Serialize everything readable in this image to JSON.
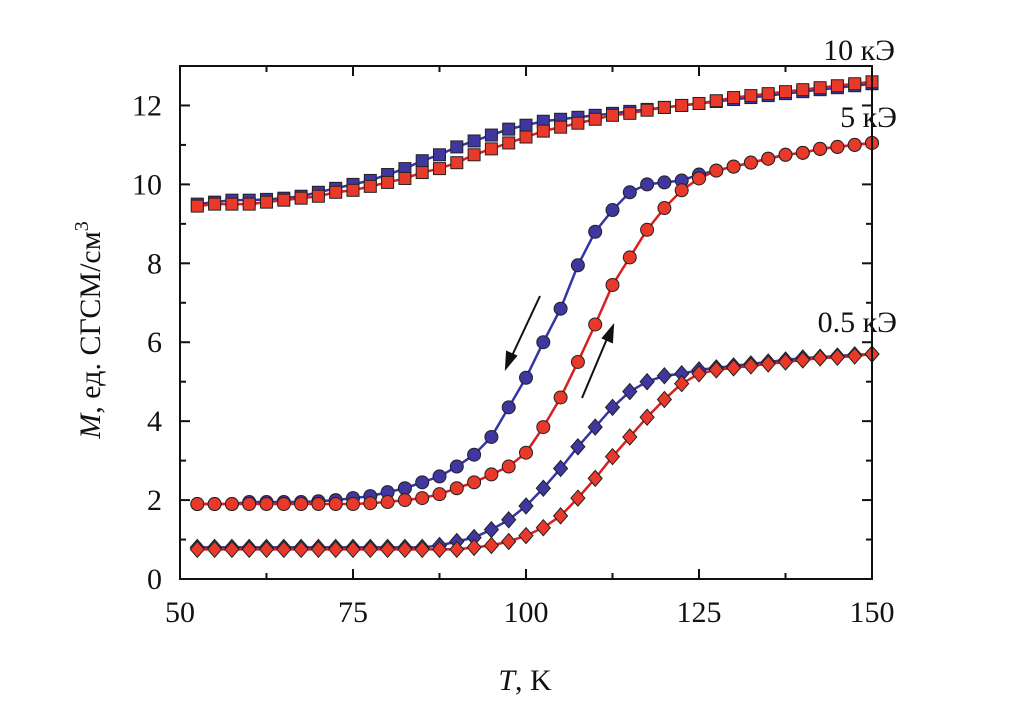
{
  "chart_data": {
    "type": "scatter",
    "xlabel": {
      "italic": "T",
      "text": ", K"
    },
    "ylabel": {
      "italic": "M",
      "text": ", ед. СГСМ/см",
      "sup": "3"
    },
    "annotations": [
      "10 кЭ",
      "5 кЭ",
      "0.5 кЭ"
    ],
    "xlim": [
      50,
      150
    ],
    "xticks": [
      50,
      75,
      100,
      125,
      150
    ],
    "ylim": [
      0,
      13
    ],
    "yticks": [
      0,
      2,
      4,
      6,
      8,
      10,
      12
    ],
    "x": [
      52.5,
      55,
      57.5,
      60,
      62.5,
      65,
      67.5,
      70,
      72.5,
      75,
      77.5,
      80,
      82.5,
      85,
      87.5,
      90,
      92.5,
      95,
      97.5,
      100,
      102.5,
      105,
      107.5,
      110,
      112.5,
      115,
      117.5,
      120,
      122.5,
      125,
      127.5,
      130,
      132.5,
      135,
      137.5,
      140,
      142.5,
      145,
      147.5,
      150
    ],
    "series": [
      {
        "marker": "square",
        "color": "#3f36a0",
        "line_color": "#3535a8",
        "values": [
          9.5,
          9.55,
          9.6,
          9.6,
          9.62,
          9.65,
          9.7,
          9.8,
          9.9,
          10.0,
          10.1,
          10.25,
          10.4,
          10.6,
          10.75,
          10.95,
          11.1,
          11.25,
          11.4,
          11.5,
          11.6,
          11.65,
          11.7,
          11.75,
          11.8,
          11.85,
          11.9,
          11.95,
          12.0,
          12.05,
          12.1,
          12.15,
          12.2,
          12.25,
          12.3,
          12.35,
          12.4,
          12.45,
          12.5,
          12.55
        ]
      },
      {
        "marker": "square",
        "color": "#e8392b",
        "line_color": "#d82020",
        "values": [
          9.45,
          9.5,
          9.5,
          9.5,
          9.55,
          9.6,
          9.65,
          9.7,
          9.8,
          9.85,
          9.95,
          10.05,
          10.15,
          10.3,
          10.4,
          10.55,
          10.75,
          10.9,
          11.05,
          11.2,
          11.35,
          11.45,
          11.55,
          11.65,
          11.75,
          11.8,
          11.88,
          11.95,
          12.0,
          12.05,
          12.12,
          12.2,
          12.25,
          12.3,
          12.35,
          12.4,
          12.45,
          12.5,
          12.55,
          12.6
        ]
      },
      {
        "marker": "circle",
        "color": "#3f36a0",
        "line_color": "#3535a8",
        "values": [
          1.9,
          1.9,
          1.9,
          1.95,
          1.95,
          1.95,
          1.95,
          1.97,
          2.0,
          2.05,
          2.1,
          2.2,
          2.3,
          2.45,
          2.6,
          2.85,
          3.15,
          3.6,
          4.35,
          5.1,
          6.0,
          6.85,
          7.95,
          8.8,
          9.35,
          9.8,
          10.0,
          10.05,
          10.1,
          10.25,
          10.35,
          10.45,
          10.55,
          10.65,
          10.75,
          10.8,
          10.9,
          10.95,
          11.0,
          11.05
        ]
      },
      {
        "marker": "circle",
        "color": "#e8392b",
        "line_color": "#d82020",
        "values": [
          1.9,
          1.9,
          1.9,
          1.9,
          1.9,
          1.9,
          1.9,
          1.9,
          1.9,
          1.9,
          1.92,
          1.95,
          2.0,
          2.05,
          2.15,
          2.3,
          2.45,
          2.65,
          2.85,
          3.2,
          3.85,
          4.6,
          5.5,
          6.45,
          7.45,
          8.15,
          8.85,
          9.4,
          9.85,
          10.15,
          10.35,
          10.45,
          10.55,
          10.65,
          10.75,
          10.8,
          10.9,
          10.95,
          11.0,
          11.05
        ]
      },
      {
        "marker": "diamond",
        "color": "#3f36a0",
        "line_color": "#3535a8",
        "values": [
          0.8,
          0.8,
          0.8,
          0.8,
          0.8,
          0.8,
          0.8,
          0.8,
          0.8,
          0.8,
          0.8,
          0.8,
          0.8,
          0.8,
          0.85,
          0.95,
          1.05,
          1.25,
          1.5,
          1.85,
          2.3,
          2.8,
          3.35,
          3.85,
          4.35,
          4.75,
          5.0,
          5.15,
          5.2,
          5.3,
          5.35,
          5.4,
          5.45,
          5.5,
          5.55,
          5.6,
          5.62,
          5.65,
          5.68,
          5.7
        ]
      },
      {
        "marker": "diamond",
        "color": "#e8392b",
        "line_color": "#d82020",
        "values": [
          0.75,
          0.75,
          0.75,
          0.75,
          0.75,
          0.75,
          0.75,
          0.75,
          0.75,
          0.75,
          0.75,
          0.75,
          0.75,
          0.75,
          0.75,
          0.75,
          0.8,
          0.85,
          0.95,
          1.1,
          1.3,
          1.6,
          2.05,
          2.55,
          3.1,
          3.6,
          4.1,
          4.55,
          4.95,
          5.2,
          5.3,
          5.35,
          5.4,
          5.45,
          5.5,
          5.55,
          5.6,
          5.62,
          5.65,
          5.7
        ]
      }
    ]
  }
}
